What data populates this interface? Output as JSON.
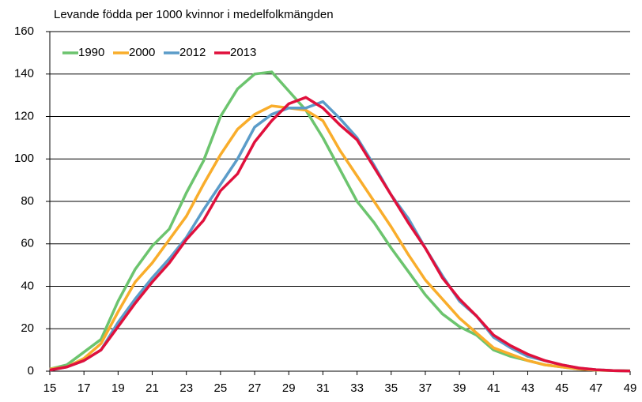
{
  "chart_data": {
    "type": "line",
    "subtitle": "Levande födda per 1000 kvinnor i medelfolkmängden",
    "x": [
      15,
      16,
      17,
      18,
      19,
      20,
      21,
      22,
      23,
      24,
      25,
      26,
      27,
      28,
      29,
      30,
      31,
      32,
      33,
      34,
      35,
      36,
      37,
      38,
      39,
      40,
      41,
      42,
      43,
      44,
      45,
      46,
      47,
      48,
      49
    ],
    "xlim": [
      15,
      49
    ],
    "xticks": [
      15,
      17,
      19,
      21,
      23,
      25,
      27,
      29,
      31,
      33,
      35,
      37,
      39,
      41,
      43,
      45,
      47,
      49
    ],
    "ylim": [
      0,
      160
    ],
    "yticks": [
      0,
      20,
      40,
      60,
      80,
      100,
      120,
      140,
      160
    ],
    "grid": true,
    "legend": "upper left",
    "series": [
      {
        "name": "1990",
        "color": "#6cc46e",
        "values": [
          1,
          3,
          9,
          15,
          33,
          48,
          59,
          67,
          84,
          99,
          120,
          133,
          140,
          141,
          132,
          123,
          110,
          95,
          80,
          70,
          58,
          47,
          36,
          27,
          21,
          17,
          10,
          7,
          5,
          3,
          2,
          1,
          0.5,
          0.3,
          0.2
        ]
      },
      {
        "name": "2000",
        "color": "#f9ad2b",
        "values": [
          1,
          2,
          6,
          13,
          28,
          42,
          51,
          62,
          73,
          88,
          102,
          114,
          121,
          125,
          124,
          123,
          118,
          104,
          92,
          80,
          68,
          55,
          43,
          34,
          25,
          18,
          11,
          8,
          5,
          3,
          2,
          1,
          0.5,
          0.3,
          0.1
        ]
      },
      {
        "name": "2012",
        "color": "#5b9cc9",
        "values": [
          0.5,
          2,
          5,
          10,
          23,
          34,
          44,
          53,
          63,
          76,
          88,
          100,
          115,
          121,
          124,
          124,
          127,
          119,
          110,
          97,
          83,
          72,
          58,
          45,
          33,
          26,
          16,
          11,
          7,
          5,
          3,
          1.5,
          0.7,
          0.3,
          0.1
        ]
      },
      {
        "name": "2013",
        "color": "#e0103c",
        "values": [
          0.5,
          2,
          5,
          10,
          21,
          32,
          42,
          51,
          62,
          71,
          85,
          93,
          108,
          118,
          126,
          129,
          124,
          116,
          109,
          96,
          83,
          70,
          58,
          44,
          34,
          26,
          17,
          12,
          8,
          5,
          3,
          1.5,
          0.7,
          0.3,
          0.1
        ]
      }
    ]
  }
}
